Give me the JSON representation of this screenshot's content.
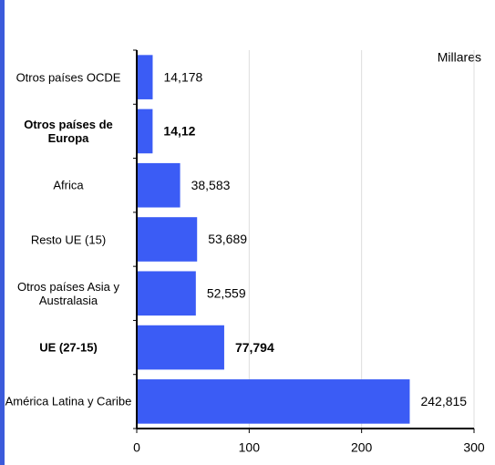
{
  "chart_data": {
    "type": "hbar",
    "unit_label": "Millares",
    "categories": [
      "Otros países OCDE",
      "Otros países de Europa",
      "Africa",
      "Resto UE (15)",
      "Otros países Asia y Australasia",
      "UE (27-15)",
      "América Latina y Caribe"
    ],
    "values": [
      14.178,
      14.12,
      38.583,
      53.689,
      52.559,
      77.794,
      242.815
    ],
    "value_labels": [
      "14,178",
      "14,12",
      "38,583",
      "53,689",
      "52,559",
      "77,794",
      "242,815"
    ],
    "highlight": [
      false,
      true,
      false,
      false,
      false,
      true,
      false
    ],
    "color": "#3b5cf5",
    "xlim": [
      0,
      300
    ],
    "xticks": [
      0,
      100,
      200,
      300
    ],
    "grid": true
  }
}
